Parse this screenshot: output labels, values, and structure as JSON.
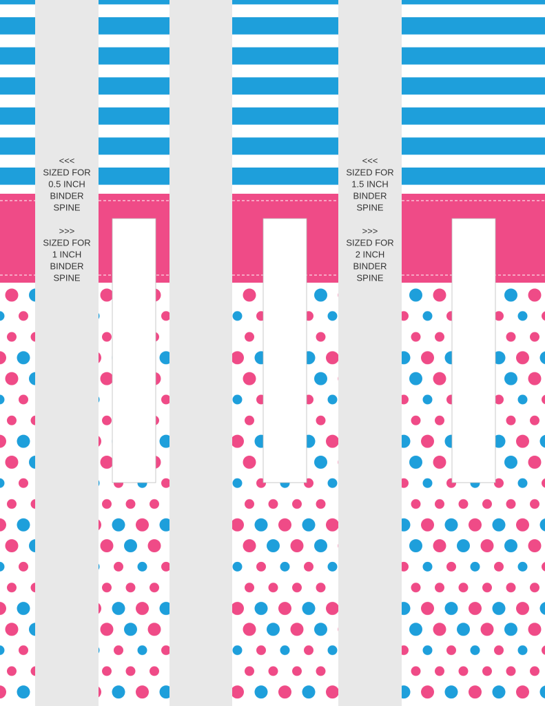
{
  "spine_labels": [
    {
      "left_arrow": "<<<",
      "left_text": [
        "SIZED FOR",
        "0.5 INCH",
        "BINDER",
        "SPINE"
      ],
      "right_arrow": ">>>",
      "right_text": [
        "SIZED FOR",
        "1 INCH",
        "BINDER",
        "SPINE"
      ]
    },
    {
      "left_arrow": "<<<",
      "left_text": [
        "SIZED FOR",
        "1.5 INCH",
        "BINDER",
        "SPINE"
      ],
      "right_arrow": ">>>",
      "right_text": [
        "SIZED FOR",
        "2 INCH",
        "BINDER",
        "SPINE"
      ]
    }
  ]
}
